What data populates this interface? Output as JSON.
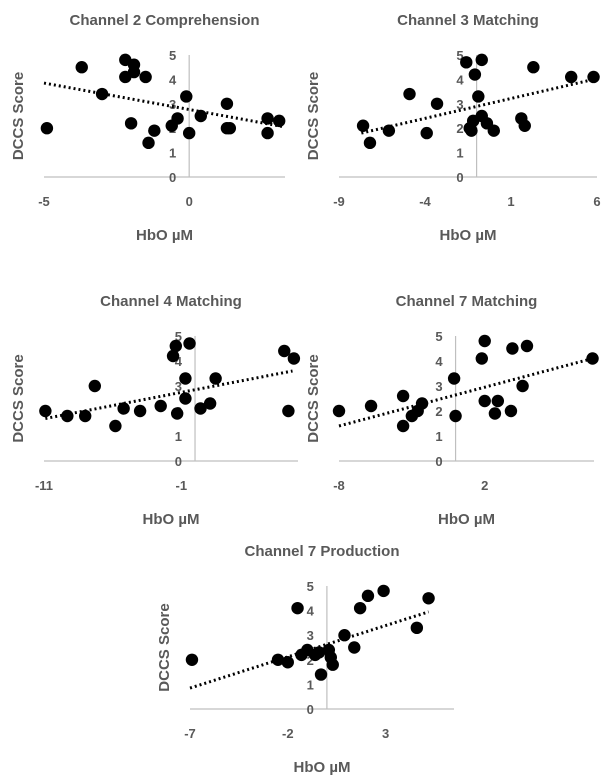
{
  "chart_data": [
    {
      "type": "scatter",
      "title": "Channel 2 Comprehension",
      "xlabel": "HbO µM",
      "ylabel": "DCCS Score",
      "xlim": [
        -5,
        3.3
      ],
      "ylim": [
        0,
        5
      ],
      "xticks": [
        "-5",
        "0"
      ],
      "xtick_values": [
        -5,
        0
      ],
      "yticks": [
        "0",
        "1",
        "2",
        "3",
        "4",
        "5"
      ],
      "y_axis_at_x": 0,
      "trendline": {
        "type": "linear",
        "style": "dotted",
        "x": [
          -5,
          3.3
        ],
        "y": [
          3.85,
          2.05
        ]
      },
      "points": [
        {
          "x": -4.9,
          "y": 2.0
        },
        {
          "x": -3.7,
          "y": 4.5
        },
        {
          "x": -3.0,
          "y": 3.4
        },
        {
          "x": -2.2,
          "y": 4.8
        },
        {
          "x": -2.2,
          "y": 4.1
        },
        {
          "x": -1.9,
          "y": 4.6
        },
        {
          "x": -1.9,
          "y": 4.3
        },
        {
          "x": -2.0,
          "y": 2.2
        },
        {
          "x": -1.5,
          "y": 4.1
        },
        {
          "x": -1.4,
          "y": 1.4
        },
        {
          "x": -1.2,
          "y": 1.9
        },
        {
          "x": -0.6,
          "y": 2.1
        },
        {
          "x": -0.4,
          "y": 2.4
        },
        {
          "x": -0.1,
          "y": 3.3
        },
        {
          "x": 0.0,
          "y": 1.8
        },
        {
          "x": 0.4,
          "y": 2.5
        },
        {
          "x": 1.3,
          "y": 3.0
        },
        {
          "x": 1.3,
          "y": 2.0
        },
        {
          "x": 1.4,
          "y": 2.0
        },
        {
          "x": 2.7,
          "y": 2.4
        },
        {
          "x": 2.7,
          "y": 1.8
        },
        {
          "x": 3.1,
          "y": 2.3
        }
      ]
    },
    {
      "type": "scatter",
      "title": "Channel 3 Matching",
      "xlabel": "HbO µM",
      "ylabel": "DCCS Score",
      "xlim": [
        -9,
        6
      ],
      "ylim": [
        0,
        5
      ],
      "xticks": [
        "-9",
        "-4",
        "1",
        "6"
      ],
      "xtick_values": [
        -9,
        -4,
        1,
        6
      ],
      "yticks": [
        "0",
        "1",
        "2",
        "3",
        "4",
        "5"
      ],
      "y_axis_at_x": -1,
      "trendline": {
        "type": "linear",
        "style": "dotted",
        "x": [
          -7.7,
          5.8
        ],
        "y": [
          1.8,
          4.0
        ]
      },
      "points": [
        {
          "x": -7.6,
          "y": 2.1
        },
        {
          "x": -7.2,
          "y": 1.4
        },
        {
          "x": -6.1,
          "y": 1.9
        },
        {
          "x": -4.9,
          "y": 3.4
        },
        {
          "x": -3.3,
          "y": 3.0
        },
        {
          "x": -3.9,
          "y": 1.8
        },
        {
          "x": -1.6,
          "y": 4.7
        },
        {
          "x": -1.4,
          "y": 2.0
        },
        {
          "x": -1.2,
          "y": 2.3
        },
        {
          "x": -1.1,
          "y": 4.2
        },
        {
          "x": -0.9,
          "y": 3.3
        },
        {
          "x": -0.7,
          "y": 4.8
        },
        {
          "x": -0.7,
          "y": 2.5
        },
        {
          "x": -0.4,
          "y": 2.2
        },
        {
          "x": 0.0,
          "y": 1.9
        },
        {
          "x": -1.3,
          "y": 1.9
        },
        {
          "x": 1.6,
          "y": 2.4
        },
        {
          "x": 1.8,
          "y": 2.1
        },
        {
          "x": 2.3,
          "y": 4.5
        },
        {
          "x": 4.5,
          "y": 4.1
        },
        {
          "x": 5.8,
          "y": 4.1
        }
      ]
    },
    {
      "type": "scatter",
      "title": "Channel 4 Matching",
      "xlabel": "HbO µM",
      "ylabel": "DCCS Score",
      "xlim": [
        -11,
        7.5
      ],
      "ylim": [
        0,
        5
      ],
      "xticks": [
        "-11",
        "-1"
      ],
      "xtick_values": [
        -11,
        -1
      ],
      "yticks": [
        "0",
        "1",
        "2",
        "3",
        "4",
        "5"
      ],
      "y_axis_at_x": 0,
      "trendline": {
        "type": "linear",
        "style": "dotted",
        "x": [
          -10.9,
          7.1
        ],
        "y": [
          1.7,
          3.6
        ]
      },
      "points": [
        {
          "x": -10.9,
          "y": 2.0
        },
        {
          "x": -9.3,
          "y": 1.8
        },
        {
          "x": -8.0,
          "y": 1.8
        },
        {
          "x": -7.3,
          "y": 3.0
        },
        {
          "x": -5.8,
          "y": 1.4
        },
        {
          "x": -5.2,
          "y": 2.1
        },
        {
          "x": -4.0,
          "y": 2.0
        },
        {
          "x": -2.5,
          "y": 2.2
        },
        {
          "x": -1.6,
          "y": 4.2
        },
        {
          "x": -1.4,
          "y": 4.6
        },
        {
          "x": -1.3,
          "y": 1.9
        },
        {
          "x": -0.7,
          "y": 3.3
        },
        {
          "x": -0.7,
          "y": 2.5
        },
        {
          "x": -0.4,
          "y": 4.7
        },
        {
          "x": 0.4,
          "y": 2.1
        },
        {
          "x": 1.1,
          "y": 2.3
        },
        {
          "x": 1.5,
          "y": 3.3
        },
        {
          "x": 6.5,
          "y": 4.4
        },
        {
          "x": 6.8,
          "y": 2.0
        },
        {
          "x": 7.2,
          "y": 4.1
        }
      ]
    },
    {
      "type": "scatter",
      "title": "Channel 7 Matching",
      "xlabel": "HbO µM",
      "ylabel": "DCCS Score",
      "xlim": [
        -8,
        9.5
      ],
      "ylim": [
        0,
        5
      ],
      "xticks": [
        "-8",
        "2"
      ],
      "xtick_values": [
        -8,
        2
      ],
      "yticks": [
        "0",
        "1",
        "2",
        "3",
        "4",
        "5"
      ],
      "y_axis_at_x": 0,
      "trendline": {
        "type": "linear",
        "style": "dotted",
        "x": [
          -8,
          9.4
        ],
        "y": [
          1.4,
          4.1
        ]
      },
      "points": [
        {
          "x": -8.0,
          "y": 2.0
        },
        {
          "x": -5.8,
          "y": 2.2
        },
        {
          "x": -3.6,
          "y": 2.6
        },
        {
          "x": -3.6,
          "y": 1.4
        },
        {
          "x": -3.0,
          "y": 1.8
        },
        {
          "x": -2.6,
          "y": 2.0
        },
        {
          "x": -2.3,
          "y": 2.3
        },
        {
          "x": -0.1,
          "y": 3.3
        },
        {
          "x": 0.0,
          "y": 1.8
        },
        {
          "x": 1.8,
          "y": 4.1
        },
        {
          "x": 2.0,
          "y": 4.8
        },
        {
          "x": 2.0,
          "y": 2.4
        },
        {
          "x": 2.7,
          "y": 1.9
        },
        {
          "x": 2.9,
          "y": 2.4
        },
        {
          "x": 3.8,
          "y": 2.0
        },
        {
          "x": 3.9,
          "y": 4.5
        },
        {
          "x": 4.6,
          "y": 3.0
        },
        {
          "x": 4.9,
          "y": 4.6
        },
        {
          "x": 9.4,
          "y": 4.1
        }
      ]
    },
    {
      "type": "scatter",
      "title": "Channel 7 Production",
      "xlabel": "HbO µM",
      "ylabel": "DCCS Score",
      "xlim": [
        -7,
        6.5
      ],
      "ylim": [
        0,
        5
      ],
      "xticks": [
        "-7",
        "-2",
        "3"
      ],
      "xtick_values": [
        -7,
        -2,
        3
      ],
      "yticks": [
        "0",
        "1",
        "2",
        "3",
        "4",
        "5"
      ],
      "y_axis_at_x": 0,
      "trendline": {
        "type": "linear",
        "style": "dotted",
        "x": [
          -7,
          5.2
        ],
        "y": [
          0.85,
          3.95
        ]
      },
      "points": [
        {
          "x": -6.9,
          "y": 2.0
        },
        {
          "x": -2.5,
          "y": 2.0
        },
        {
          "x": -2.0,
          "y": 1.9
        },
        {
          "x": -1.5,
          "y": 4.1
        },
        {
          "x": -1.3,
          "y": 2.2
        },
        {
          "x": -1.0,
          "y": 2.4
        },
        {
          "x": -0.6,
          "y": 2.2
        },
        {
          "x": -0.4,
          "y": 2.3
        },
        {
          "x": -0.3,
          "y": 1.4
        },
        {
          "x": 0.1,
          "y": 2.4
        },
        {
          "x": 0.2,
          "y": 2.1
        },
        {
          "x": 0.3,
          "y": 1.8
        },
        {
          "x": 0.9,
          "y": 3.0
        },
        {
          "x": 1.4,
          "y": 2.5
        },
        {
          "x": 1.7,
          "y": 4.1
        },
        {
          "x": 2.1,
          "y": 4.6
        },
        {
          "x": 2.9,
          "y": 4.8
        },
        {
          "x": 4.6,
          "y": 3.3
        },
        {
          "x": 5.2,
          "y": 4.5
        }
      ]
    }
  ]
}
